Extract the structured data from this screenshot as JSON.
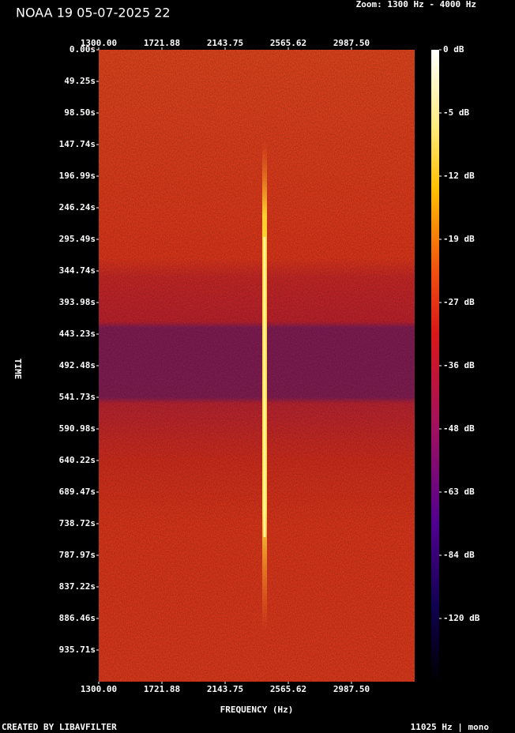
{
  "chart_data": {
    "type": "spectrogram",
    "title": "NOAA 19 05-07-2025 22",
    "subtitle": "Zoom: 1300 Hz - 4000 Hz",
    "xlabel": "FREQUENCY (Hz)",
    "ylabel": "TIME",
    "xlim": [
      1300,
      3409.375
    ],
    "xticks": [
      {
        "value": 1300,
        "label": "1300.00"
      },
      {
        "value": 1721.88,
        "label": "1721.88"
      },
      {
        "value": 2143.75,
        "label": "2143.75"
      },
      {
        "value": 2565.62,
        "label": "2565.62"
      },
      {
        "value": 2987.5,
        "label": "2987.50"
      }
    ],
    "ylim": [
      0,
      985
    ],
    "yticks": [
      {
        "value": 0,
        "label": "0.00s"
      },
      {
        "value": 49.25,
        "label": "49.25s"
      },
      {
        "value": 98.5,
        "label": "98.50s"
      },
      {
        "value": 147.74,
        "label": "147.74s"
      },
      {
        "value": 196.99,
        "label": "196.99s"
      },
      {
        "value": 246.24,
        "label": "246.24s"
      },
      {
        "value": 295.49,
        "label": "295.49s"
      },
      {
        "value": 344.74,
        "label": "344.74s"
      },
      {
        "value": 393.98,
        "label": "393.98s"
      },
      {
        "value": 443.23,
        "label": "443.23s"
      },
      {
        "value": 492.48,
        "label": "492.48s"
      },
      {
        "value": 541.73,
        "label": "541.73s"
      },
      {
        "value": 590.98,
        "label": "590.98s"
      },
      {
        "value": 640.22,
        "label": "640.22s"
      },
      {
        "value": 689.47,
        "label": "689.47s"
      },
      {
        "value": 738.72,
        "label": "738.72s"
      },
      {
        "value": 787.97,
        "label": "787.97s"
      },
      {
        "value": 837.22,
        "label": "837.22s"
      },
      {
        "value": 886.46,
        "label": "886.46s"
      },
      {
        "value": 935.71,
        "label": "935.71s"
      }
    ],
    "colorbar_ticks": [
      {
        "value": 0,
        "label": "0 dB"
      },
      {
        "value": -5,
        "label": "-5 dB"
      },
      {
        "value": -12,
        "label": "-12 dB"
      },
      {
        "value": -19,
        "label": "-19 dB"
      },
      {
        "value": -27,
        "label": "-27 dB"
      },
      {
        "value": -36,
        "label": "-36 dB"
      },
      {
        "value": -48,
        "label": "-48 dB"
      },
      {
        "value": -63,
        "label": "-63 dB"
      },
      {
        "value": -84,
        "label": "-84 dB"
      },
      {
        "value": -120,
        "label": "-120 dB"
      }
    ],
    "footer_left": "CREATED BY LIBAVFILTER",
    "footer_right": "11025 Hz | mono"
  }
}
